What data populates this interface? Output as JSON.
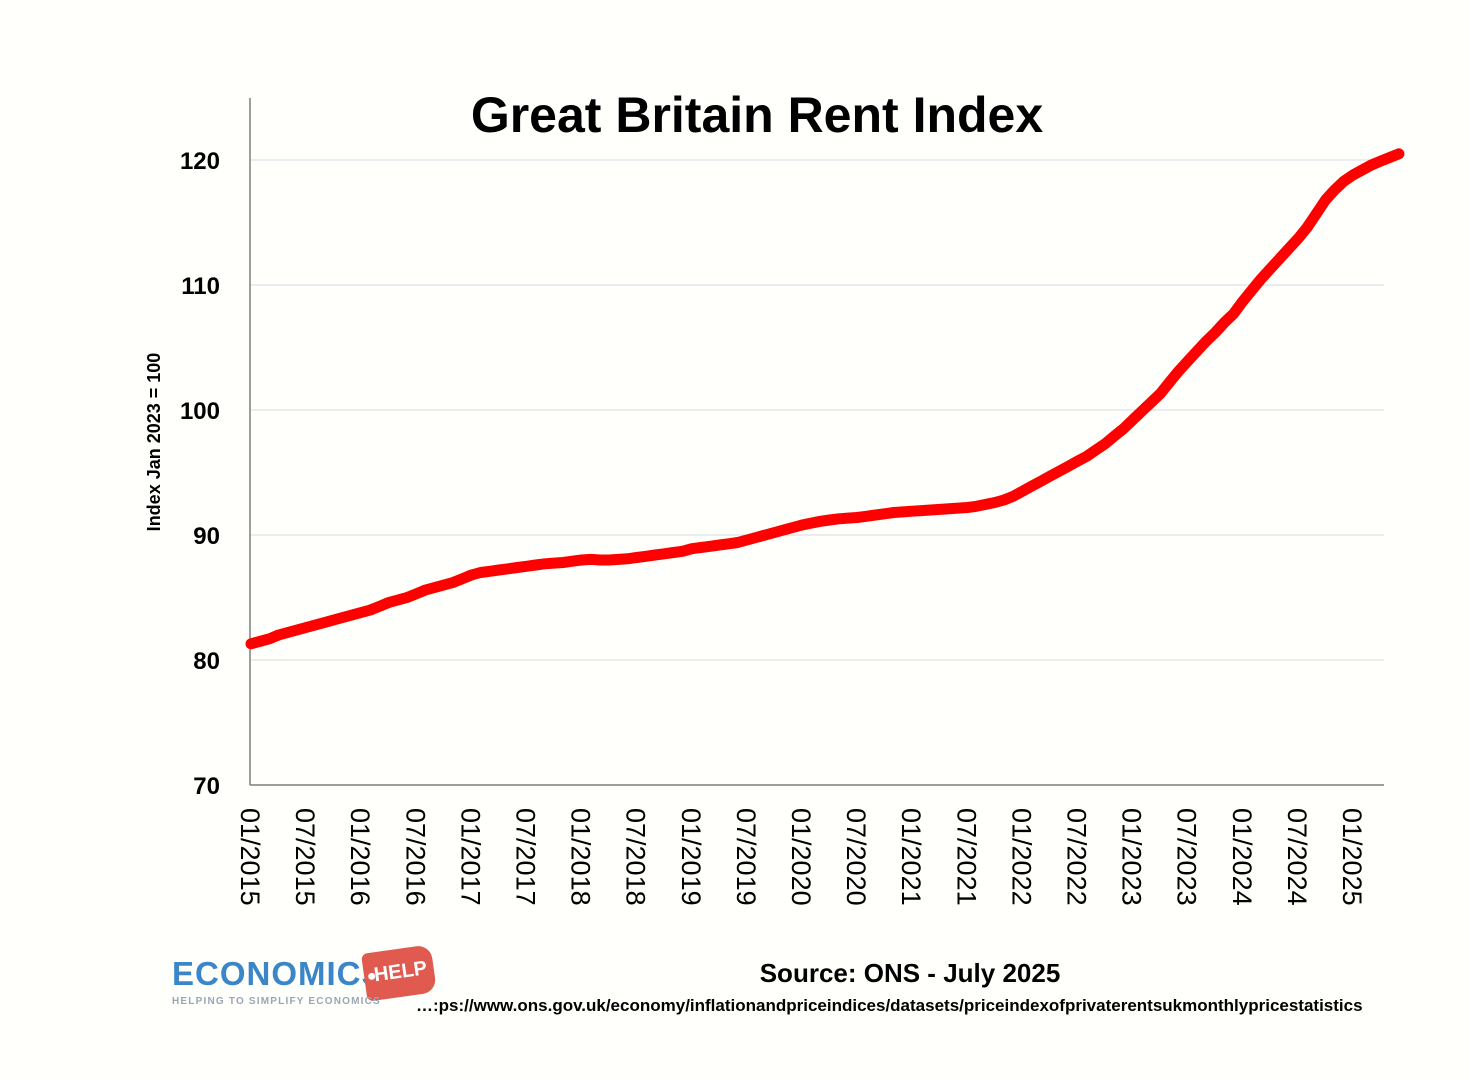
{
  "chart_data": {
    "type": "line",
    "title": "Great Britain Rent Index",
    "ylabel": "Index Jan 2023 = 100",
    "xlabel": "",
    "ylim": [
      70,
      123
    ],
    "yticks": [
      70,
      80,
      90,
      100,
      110,
      120
    ],
    "grid": "horizontal",
    "xtick_labels": [
      "01/2015",
      "07/2015",
      "01/2016",
      "07/2016",
      "01/2017",
      "07/2017",
      "01/2018",
      "07/2018",
      "01/2019",
      "07/2019",
      "01/2020",
      "07/2020",
      "01/2021",
      "07/2021",
      "01/2022",
      "07/2022",
      "01/2023",
      "07/2023",
      "01/2024",
      "07/2024",
      "01/2025"
    ],
    "series": [
      {
        "color": "#ff0000",
        "x_start": "01/2015",
        "x_end": "06/2025",
        "values": [
          81.3,
          81.5,
          81.7,
          82.0,
          82.2,
          82.4,
          82.6,
          82.8,
          83.0,
          83.2,
          83.4,
          83.6,
          83.8,
          84.0,
          84.3,
          84.6,
          84.8,
          85.0,
          85.3,
          85.6,
          85.8,
          86.0,
          86.2,
          86.5,
          86.8,
          87.0,
          87.1,
          87.2,
          87.3,
          87.4,
          87.5,
          87.6,
          87.7,
          87.75,
          87.8,
          87.9,
          88.0,
          88.05,
          88.0,
          88.0,
          88.05,
          88.1,
          88.2,
          88.3,
          88.4,
          88.5,
          88.6,
          88.7,
          88.9,
          89.0,
          89.1,
          89.2,
          89.3,
          89.4,
          89.6,
          89.8,
          90.0,
          90.2,
          90.4,
          90.6,
          90.8,
          90.95,
          91.1,
          91.2,
          91.3,
          91.35,
          91.4,
          91.5,
          91.6,
          91.7,
          91.8,
          91.85,
          91.9,
          91.95,
          92.0,
          92.05,
          92.1,
          92.15,
          92.2,
          92.3,
          92.45,
          92.6,
          92.8,
          93.1,
          93.5,
          93.9,
          94.3,
          94.7,
          95.1,
          95.5,
          95.9,
          96.3,
          96.8,
          97.3,
          97.9,
          98.5,
          99.2,
          99.9,
          100.6,
          101.3,
          102.2,
          103.1,
          103.9,
          104.7,
          105.5,
          106.2,
          107.0,
          107.7,
          108.7,
          109.6,
          110.5,
          111.3,
          112.1,
          112.9,
          113.7,
          114.6,
          115.7,
          116.8,
          117.6,
          118.3,
          118.8,
          119.2,
          119.6,
          119.9,
          120.2,
          120.5
        ]
      }
    ]
  },
  "source": "Source: ONS - July 2025",
  "url": "…:ps://www.ons.gov.uk/economy/inflationandpriceindices/datasets/priceindexofprivaterentsukmonthlypricestatistics",
  "logo": {
    "word": "ECONOMICS",
    "tag": "HELP",
    "tagline": "HELPING TO SIMPLIFY ECONOMICS",
    "word_color": "#3b86c9",
    "tag_color": "#e05a4f"
  }
}
